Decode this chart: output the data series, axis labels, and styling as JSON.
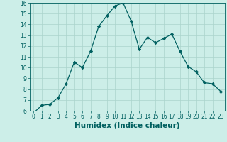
{
  "x": [
    0,
    1,
    2,
    3,
    4,
    5,
    6,
    7,
    8,
    9,
    10,
    11,
    12,
    13,
    14,
    15,
    16,
    17,
    18,
    19,
    20,
    21,
    22,
    23
  ],
  "y": [
    5.8,
    6.5,
    6.6,
    7.2,
    8.5,
    10.5,
    10.0,
    11.5,
    13.8,
    14.8,
    15.7,
    16.0,
    14.3,
    11.7,
    12.8,
    12.3,
    12.7,
    13.1,
    11.5,
    10.1,
    9.6,
    8.6,
    8.5,
    7.8
  ],
  "line_color": "#006060",
  "marker": "D",
  "marker_size": 2.2,
  "bg_color": "#cceee8",
  "grid_color": "#aad4cc",
  "xlabel": "Humidex (Indice chaleur)",
  "ylim": [
    6,
    16
  ],
  "xlim": [
    -0.5,
    23.5
  ],
  "yticks": [
    6,
    7,
    8,
    9,
    10,
    11,
    12,
    13,
    14,
    15,
    16
  ],
  "xticks": [
    0,
    1,
    2,
    3,
    4,
    5,
    6,
    7,
    8,
    9,
    10,
    11,
    12,
    13,
    14,
    15,
    16,
    17,
    18,
    19,
    20,
    21,
    22,
    23
  ],
  "tick_label_fontsize": 5.5,
  "xlabel_fontsize": 7.5,
  "axis_color": "#006060",
  "label_color": "#006060"
}
